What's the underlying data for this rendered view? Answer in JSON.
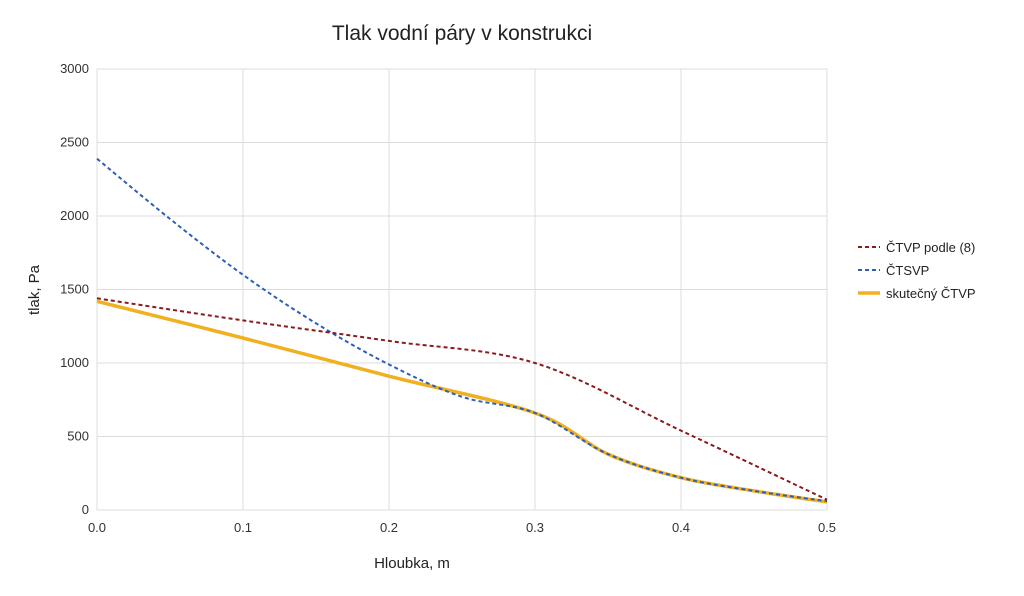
{
  "chart_data": {
    "type": "line",
    "title": "Tlak vodní páry v konstrukci",
    "xlabel": "Hloubka, m",
    "ylabel": "tlak, Pa",
    "xlim": [
      0,
      0.5
    ],
    "ylim": [
      0,
      3000
    ],
    "xticks": [
      "0.0",
      "0.1",
      "0.2",
      "0.3",
      "0.4",
      "0.5"
    ],
    "yticks": [
      "0",
      "500",
      "1000",
      "1500",
      "2000",
      "2500",
      "3000"
    ],
    "grid": true,
    "legend_position": "right",
    "series": [
      {
        "name": "ČTVP podle (8)",
        "color": "#8b1a1a",
        "dash": "dotted",
        "x": [
          0,
          0.1,
          0.2,
          0.3,
          0.4,
          0.5
        ],
        "y": [
          1440,
          1290,
          1150,
          1000,
          540,
          70
        ]
      },
      {
        "name": "ČTSVP",
        "color": "#2e5fb7",
        "dash": "dotted",
        "x": [
          0,
          0.05,
          0.1,
          0.15,
          0.2,
          0.25,
          0.3,
          0.35,
          0.4,
          0.45,
          0.5
        ],
        "y": [
          2390,
          1980,
          1600,
          1270,
          990,
          770,
          660,
          380,
          220,
          130,
          60
        ]
      },
      {
        "name": "skutečný ČTVP",
        "color": "#f0b020",
        "dash": "solid",
        "x": [
          0,
          0.1,
          0.2,
          0.3,
          0.35,
          0.4,
          0.45,
          0.5
        ],
        "y": [
          1420,
          1170,
          910,
          660,
          380,
          220,
          130,
          55
        ]
      }
    ]
  }
}
